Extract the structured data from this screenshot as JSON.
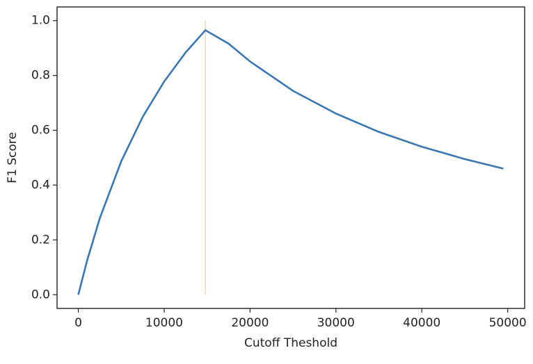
{
  "chart_data": {
    "type": "line",
    "xlabel": "Cutoff Theshold",
    "ylabel": "F1 Score",
    "series": [
      {
        "color": "#3a76b0",
        "x": [
          0,
          1000,
          2500,
          5000,
          7500,
          10000,
          12500,
          14800,
          17500,
          20000,
          25000,
          30000,
          35000,
          40000,
          45000,
          49500
        ],
        "values": [
          0,
          0.122,
          0.279,
          0.487,
          0.649,
          0.778,
          0.884,
          0.965,
          0.916,
          0.851,
          0.744,
          0.661,
          0.594,
          0.54,
          0.495,
          0.46
        ]
      },
      {
        "color": "#f7dcb4",
        "x": [
          14800,
          14800
        ],
        "values": [
          0,
          1.0
        ]
      }
    ],
    "xlim": [
      -2475,
      51975
    ],
    "ylim": [
      -0.05,
      1.05
    ],
    "xticks": [
      0,
      10000,
      20000,
      30000,
      40000,
      50000
    ],
    "yticks": [
      {
        "value": 0,
        "label": "0.0"
      },
      {
        "value": 0.2,
        "label": "0.2"
      },
      {
        "value": 0.4,
        "label": "0.4"
      },
      {
        "value": 0.6,
        "label": "0.6"
      },
      {
        "value": 0.8,
        "label": "0.8"
      },
      {
        "value": 1.0,
        "label": "1.0"
      }
    ],
    "grid": false
  }
}
